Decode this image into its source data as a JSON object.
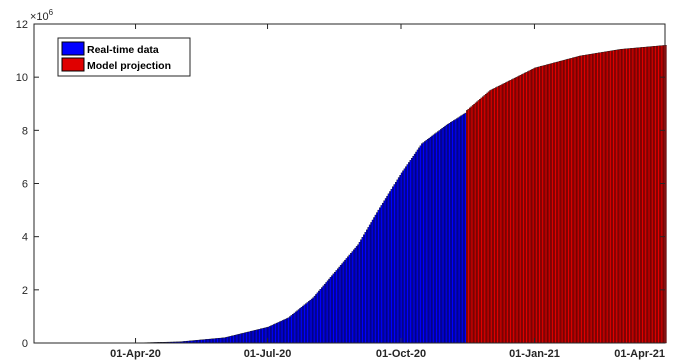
{
  "chart_data": {
    "type": "bar",
    "x_start": "2020-01-22",
    "x_end": "2021-04-01",
    "projection_start": "2020-11-15",
    "xlim": [
      "2020-01-22",
      "2021-04-01"
    ],
    "ylim": [
      0,
      12000000
    ],
    "y_exponent_label": "×10",
    "y_exponent_power": "6",
    "y_ticks": [
      0,
      2,
      4,
      6,
      8,
      10,
      12
    ],
    "x_ticks": [
      {
        "date": "2020-04-01",
        "label": "01-Apr-20"
      },
      {
        "date": "2020-07-01",
        "label": "01-Jul-20"
      },
      {
        "date": "2020-10-01",
        "label": "01-Oct-20"
      },
      {
        "date": "2021-01-01",
        "label": "01-Jan-21"
      },
      {
        "date": "2021-04-01",
        "label": "01-Apr-21"
      }
    ],
    "series": [
      {
        "name": "Real-time data",
        "color": "#0000ff",
        "points": [
          {
            "date": "2020-01-22",
            "value": 0
          },
          {
            "date": "2020-03-01",
            "value": 3000
          },
          {
            "date": "2020-04-01",
            "value": 5000
          },
          {
            "date": "2020-05-01",
            "value": 45000
          },
          {
            "date": "2020-06-01",
            "value": 200000
          },
          {
            "date": "2020-07-01",
            "value": 600000
          },
          {
            "date": "2020-07-15",
            "value": 950000
          },
          {
            "date": "2020-08-01",
            "value": 1700000
          },
          {
            "date": "2020-08-15",
            "value": 2600000
          },
          {
            "date": "2020-09-01",
            "value": 3700000
          },
          {
            "date": "2020-09-15",
            "value": 5000000
          },
          {
            "date": "2020-10-01",
            "value": 6400000
          },
          {
            "date": "2020-10-15",
            "value": 7500000
          },
          {
            "date": "2020-11-01",
            "value": 8200000
          },
          {
            "date": "2020-11-14",
            "value": 8650000
          }
        ]
      },
      {
        "name": "Model projection",
        "color": "#e00000",
        "points": [
          {
            "date": "2020-11-15",
            "value": 8750000
          },
          {
            "date": "2020-12-01",
            "value": 9500000
          },
          {
            "date": "2021-01-01",
            "value": 10350000
          },
          {
            "date": "2021-02-01",
            "value": 10800000
          },
          {
            "date": "2021-03-01",
            "value": 11050000
          },
          {
            "date": "2021-04-01",
            "value": 11200000
          }
        ]
      }
    ],
    "legend_position": "top-left",
    "grid": false
  }
}
